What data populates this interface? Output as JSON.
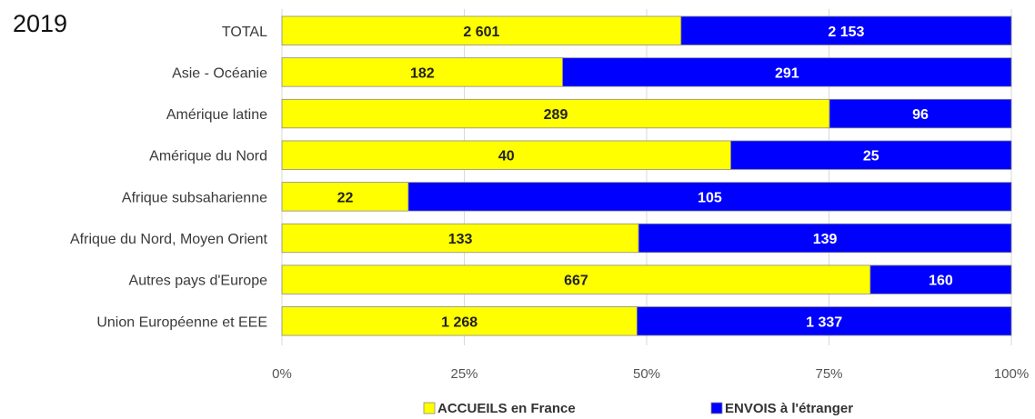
{
  "chart_data": {
    "type": "bar",
    "orientation": "horizontal",
    "stacked": "percent",
    "title": "2019",
    "categories": [
      "TOTAL",
      "Asie - Océanie",
      "Amérique latine",
      "Amérique du Nord",
      "Afrique subsaharienne",
      "Afrique du Nord, Moyen Orient",
      "Autres pays d'Europe",
      "Union Européenne et EEE"
    ],
    "series": [
      {
        "name": "ACCUEILS en France",
        "color": "#ffff00",
        "text_color": "#222222",
        "values": [
          2601,
          182,
          289,
          40,
          22,
          133,
          667,
          1268
        ],
        "labels": [
          "2 601",
          "182",
          "289",
          "40",
          "22",
          "133",
          "667",
          "1 268"
        ]
      },
      {
        "name": "ENVOIS à l'étranger",
        "color": "#0000ff",
        "text_color": "#ffffff",
        "values": [
          2153,
          291,
          96,
          25,
          105,
          139,
          160,
          1337
        ],
        "labels": [
          "2 153",
          "291",
          "96",
          "25",
          "105",
          "139",
          "160",
          "1 337"
        ]
      }
    ],
    "xticks": [
      "0%",
      "25%",
      "50%",
      "75%",
      "100%"
    ],
    "xlim": [
      0,
      100
    ],
    "grid": true,
    "legend": "bottom"
  }
}
